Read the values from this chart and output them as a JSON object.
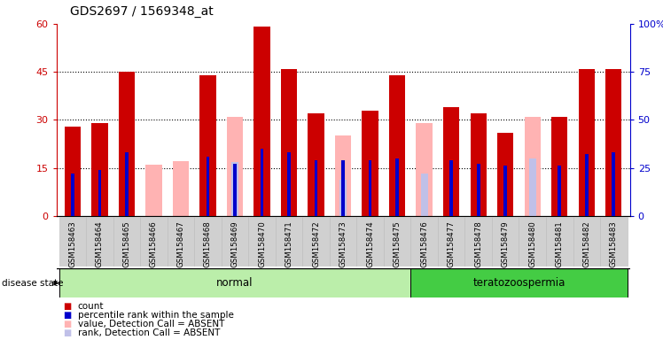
{
  "title": "GDS2697 / 1569348_at",
  "samples": [
    "GSM158463",
    "GSM158464",
    "GSM158465",
    "GSM158466",
    "GSM158467",
    "GSM158468",
    "GSM158469",
    "GSM158470",
    "GSM158471",
    "GSM158472",
    "GSM158473",
    "GSM158474",
    "GSM158475",
    "GSM158476",
    "GSM158477",
    "GSM158478",
    "GSM158479",
    "GSM158480",
    "GSM158481",
    "GSM158482",
    "GSM158483"
  ],
  "count": [
    28,
    29,
    45,
    0,
    0,
    44,
    0,
    59,
    46,
    32,
    0,
    33,
    44,
    0,
    34,
    32,
    26,
    0,
    31,
    46,
    46
  ],
  "percentile": [
    22,
    24,
    33,
    0,
    0,
    31,
    27,
    35,
    33,
    29,
    29,
    29,
    30,
    0,
    29,
    27,
    26,
    0,
    26,
    32,
    33
  ],
  "absent_value": [
    0,
    0,
    0,
    16,
    17,
    0,
    31,
    0,
    0,
    0,
    25,
    0,
    0,
    29,
    0,
    0,
    0,
    31,
    0,
    0,
    0
  ],
  "absent_rank": [
    0,
    0,
    0,
    0,
    0,
    0,
    28,
    0,
    0,
    0,
    19,
    0,
    0,
    22,
    0,
    0,
    0,
    30,
    0,
    0,
    0
  ],
  "disease_groups": [
    {
      "label": "normal",
      "start": 0,
      "end": 13
    },
    {
      "label": "teratozoospermia",
      "start": 13,
      "end": 21
    }
  ],
  "ylim_left": [
    0,
    60
  ],
  "ylim_right": [
    0,
    100
  ],
  "yticks_left": [
    0,
    15,
    30,
    45,
    60
  ],
  "yticks_right": [
    0,
    25,
    50,
    75,
    100
  ],
  "color_count": "#cc0000",
  "color_percentile": "#0000cc",
  "color_absent_value": "#ffb3b3",
  "color_absent_rank": "#c0c0e8",
  "background_group_normal": "#bbeeaa",
  "background_group_terato": "#44cc44",
  "title_fontsize": 10,
  "bar_width": 0.6,
  "percentile_bar_width": 0.12
}
